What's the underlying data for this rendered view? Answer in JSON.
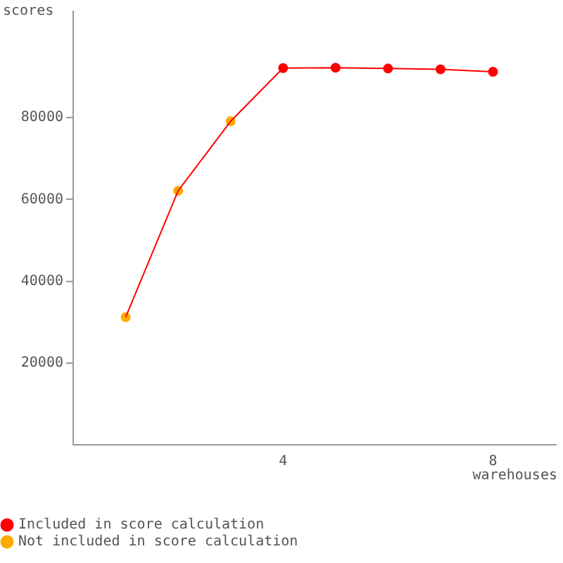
{
  "chart_data": {
    "type": "line",
    "xlabel": "warehouses",
    "ylabel": "scores",
    "x": [
      1,
      2,
      3,
      4,
      5,
      6,
      7,
      8
    ],
    "xlim": [
      0,
      9.2
    ],
    "xticks": [
      4,
      8
    ],
    "ylim": [
      0,
      106000
    ],
    "yticks": [
      20000,
      40000,
      60000,
      80000
    ],
    "grid": false,
    "legend": "bottom left",
    "marker": "circle",
    "series": [
      {
        "marker": "none",
        "color": "#ff0000",
        "values": [
          31200,
          62100,
          79100,
          92100,
          92200,
          92000,
          91800,
          91200
        ]
      },
      {
        "type": "scatter",
        "name": "Included in score calculation",
        "color": "#ff0000",
        "values": [
          null,
          null,
          null,
          92100,
          92200,
          92000,
          91800,
          91200
        ]
      },
      {
        "type": "scatter",
        "name": "Not included in score calculation",
        "color": "#ffaa00",
        "values": [
          31200,
          62100,
          79100,
          null,
          null,
          null,
          null,
          null
        ]
      }
    ]
  }
}
